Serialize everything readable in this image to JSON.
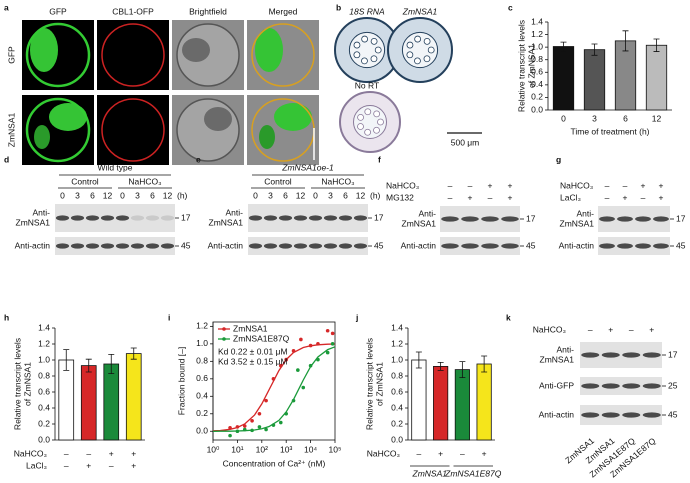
{
  "panels": {
    "a": {
      "letter": "a",
      "columns": [
        "GFP",
        "CBL1-OFP",
        "Brightfield",
        "Merged"
      ],
      "rows": [
        "GFP",
        "ZmNSA1"
      ]
    },
    "b": {
      "letter": "b",
      "labels": [
        "18S RNA",
        "ZmNSA1",
        "No RT"
      ],
      "scale_bar": "500 μm"
    },
    "d": {
      "letter": "d",
      "title": "Wild type",
      "groups": [
        "Control",
        "NaHCO₃"
      ],
      "times": [
        0,
        3,
        6,
        12,
        0,
        3,
        6,
        12
      ],
      "unit": "(h)",
      "blots": [
        {
          "label": [
            "Anti-",
            "ZmNSA1"
          ],
          "size": 17
        },
        {
          "label": [
            "Anti-actin"
          ],
          "size": 45
        }
      ]
    },
    "e": {
      "letter": "e",
      "title": "ZmNSA1oe-1",
      "groups": [
        "Control",
        "NaHCO₃"
      ],
      "times": [
        0,
        3,
        6,
        12,
        0,
        3,
        6,
        12
      ],
      "unit": "(h)",
      "blots": [
        {
          "label": [
            "Anti-",
            "ZmNSA1"
          ],
          "size": 17
        },
        {
          "label": [
            "Anti-actin"
          ],
          "size": 45
        }
      ]
    },
    "f": {
      "letter": "f",
      "rows": [
        {
          "label": "NaHCO₃",
          "signs": [
            "–",
            "–",
            "+",
            "+"
          ]
        },
        {
          "label": "MG132",
          "signs": [
            "–",
            "+",
            "–",
            "+"
          ]
        }
      ],
      "blots": [
        {
          "label": [
            "Anti-",
            "ZmNSA1"
          ],
          "size": 17
        },
        {
          "label": [
            "Anti-actin"
          ],
          "size": 45
        }
      ]
    },
    "g": {
      "letter": "g",
      "rows": [
        {
          "label": "NaHCO₃",
          "signs": [
            "–",
            "–",
            "+",
            "+"
          ]
        },
        {
          "label": "LaCl₃",
          "signs": [
            "–",
            "+",
            "–",
            "+"
          ]
        }
      ],
      "blots": [
        {
          "label": [
            "Anti-",
            "ZmNSA1"
          ],
          "size": 17
        },
        {
          "label": [
            "Anti-actin"
          ],
          "size": 45
        }
      ]
    },
    "k": {
      "letter": "k",
      "rows": [
        {
          "label": "NaHCO₃",
          "signs": [
            "–",
            "+",
            "–",
            "+"
          ]
        }
      ],
      "blots": [
        {
          "label": [
            "Anti-",
            "ZmNSA1"
          ],
          "size": 17
        },
        {
          "label": [
            "Anti-GFP"
          ],
          "size": 25
        },
        {
          "label": [
            "Anti-actin"
          ],
          "size": 45
        }
      ],
      "lanes": [
        "ZmNSA1",
        "ZmNSA1",
        "ZmNSA1E87Q",
        "ZmNSA1E87Q"
      ]
    }
  },
  "chart_data": [
    {
      "panel": "c",
      "type": "bar",
      "categories": [
        "0",
        "3",
        "6",
        "12"
      ],
      "values": [
        1.01,
        0.96,
        1.1,
        1.03
      ],
      "errors": [
        0.07,
        0.09,
        0.16,
        0.1
      ],
      "colors": [
        "#111111",
        "#555555",
        "#888888",
        "#bbbbbb"
      ],
      "ylim": [
        0,
        1.4
      ],
      "yticks": [
        {
          "value": 0,
          "label": "0.0"
        },
        0.2,
        0.4,
        0.6,
        0.8,
        {
          "value": 1,
          "label": "1.0"
        },
        1.2,
        1.4
      ],
      "ylabel": [
        "Relative transcript levels",
        "of ZmNSA1"
      ],
      "xlabel": "Time of treatment (h)"
    },
    {
      "panel": "i",
      "type": "scatter",
      "log_x": true,
      "xlim": [
        1,
        100000
      ],
      "xticks": [
        {
          "value": 1,
          "label": "10⁰"
        },
        {
          "value": 10,
          "label": "10¹"
        },
        {
          "value": 100,
          "label": "10²"
        },
        {
          "value": 1000,
          "label": "10³"
        },
        {
          "value": 10000,
          "label": "10⁴"
        },
        {
          "value": 100000,
          "label": "10⁵"
        }
      ],
      "ylim": [
        -0.1,
        1.25
      ],
      "yticks": [
        {
          "value": 0,
          "label": "0.0"
        },
        0.2,
        0.4,
        0.6,
        0.8,
        {
          "value": 1,
          "label": "1.0"
        },
        1.2
      ],
      "xlabel": "Concentration of Ca²⁺ (nM)",
      "ylabel": [
        "Fraction bound [–]"
      ],
      "annotations": [
        {
          "text": "Kd 0.22 ± 0.01 μM",
          "color": "#d62728"
        },
        {
          "text": "Kd 3.52 ± 0.15 μM",
          "color": "#1a9a3a"
        }
      ],
      "series": [
        {
          "name": "ZmNSA1",
          "color": "#d62728",
          "x": [
            5,
            10,
            20,
            40,
            80,
            150,
            300,
            600,
            1000,
            2000,
            4000,
            10000,
            20000,
            50000,
            80000
          ],
          "values": [
            0.04,
            0.05,
            0.06,
            0.12,
            0.2,
            0.35,
            0.6,
            0.75,
            0.82,
            0.92,
            1.05,
            0.98,
            1.0,
            1.15,
            1.12
          ],
          "fit_x": [
            1,
            2,
            5,
            10,
            20,
            50,
            100,
            200,
            500,
            1000,
            2000,
            5000,
            10000,
            20000,
            50000,
            100000
          ],
          "fit_values": [
            0.005,
            0.009,
            0.022,
            0.043,
            0.083,
            0.185,
            0.313,
            0.476,
            0.694,
            0.82,
            0.901,
            0.958,
            0.978,
            0.989,
            0.996,
            0.998
          ]
        },
        {
          "name": "ZmNSA1E87Q",
          "color": "#1a9a3a",
          "x": [
            5,
            10,
            20,
            40,
            80,
            150,
            300,
            600,
            1000,
            2000,
            3000,
            5000,
            10000,
            20000,
            50000,
            80000
          ],
          "values": [
            -0.05,
            0.0,
            0.02,
            0.01,
            0.05,
            0.02,
            0.07,
            0.1,
            0.2,
            0.35,
            0.7,
            0.5,
            0.75,
            0.82,
            0.9,
            1.0
          ],
          "fit_x": [
            1,
            2,
            5,
            10,
            20,
            50,
            100,
            200,
            500,
            1000,
            2000,
            5000,
            10000,
            20000,
            50000,
            100000
          ],
          "fit_values": [
            0,
            0.001,
            0.001,
            0.003,
            0.006,
            0.014,
            0.028,
            0.054,
            0.124,
            0.221,
            0.362,
            0.587,
            0.74,
            0.85,
            0.934,
            0.966
          ]
        }
      ]
    },
    {
      "panel": "h",
      "type": "bar",
      "values": [
        1.0,
        0.93,
        0.95,
        1.08
      ],
      "errors": [
        0.13,
        0.08,
        0.12,
        0.07
      ],
      "colors": [
        "#ffffff",
        "#d62728",
        "#1a8a3a",
        "#f5e51b"
      ],
      "ylim": [
        0,
        1.4
      ],
      "yticks": [
        {
          "value": 0,
          "label": "0.0"
        },
        0.2,
        0.4,
        0.6,
        0.8,
        {
          "value": 1,
          "label": "1.0"
        },
        1.2,
        1.4
      ],
      "ylabel": [
        "Relative transcript levels",
        "of ZmNSA1"
      ],
      "rows": [
        {
          "label": "NaHCO₃",
          "signs": [
            "–",
            "–",
            "+",
            "+"
          ]
        },
        {
          "label": "LaCl₃",
          "signs": [
            "–",
            "+",
            "–",
            "+"
          ]
        }
      ]
    },
    {
      "panel": "j",
      "type": "bar",
      "values": [
        1.0,
        0.92,
        0.88,
        0.95
      ],
      "errors": [
        0.1,
        0.05,
        0.1,
        0.1
      ],
      "colors": [
        "#ffffff",
        "#d62728",
        "#1a8a3a",
        "#f5e51b"
      ],
      "ylim": [
        0,
        1.4
      ],
      "yticks": [
        {
          "value": 0,
          "label": "0.0"
        },
        0.2,
        0.4,
        0.6,
        0.8,
        {
          "value": 1,
          "label": "1.0"
        },
        1.2,
        1.4
      ],
      "ylabel": [
        "Relative transcript levels",
        "of ZmNSA1"
      ],
      "rows": [
        {
          "label": "NaHCO₃",
          "signs": [
            "–",
            "+",
            "–",
            "+"
          ]
        }
      ],
      "groups": [
        "ZmNSA1",
        "ZmNSA1E87Q"
      ]
    }
  ]
}
